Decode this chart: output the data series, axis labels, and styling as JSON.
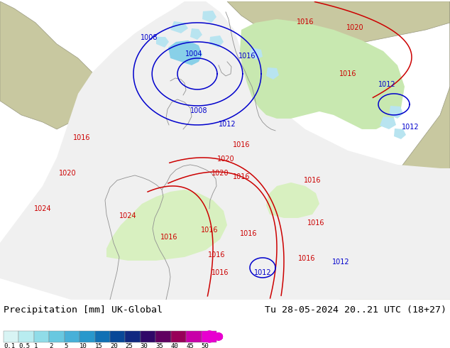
{
  "title_left": "Precipitation [mm] UK-Global",
  "title_right": "Tu 28-05-2024 20..21 UTC (18+27)",
  "colorbar_labels": [
    "0.1",
    "0.5",
    "1",
    "2",
    "5",
    "10",
    "15",
    "20",
    "25",
    "30",
    "35",
    "40",
    "45",
    "50"
  ],
  "precip_colors": [
    "#d8f4f4",
    "#b8ecf0",
    "#90dce8",
    "#68c8e0",
    "#48b0d8",
    "#2898cc",
    "#1070b4",
    "#084898",
    "#102880",
    "#300868",
    "#600060",
    "#980058",
    "#c800a8",
    "#e800d0",
    "#f060d8"
  ],
  "land_color": "#c8c8a0",
  "ocean_color": "#a8b8b8",
  "forecast_area_color": "#f0f0f0",
  "green_precip_color": "#c8e8b0",
  "light_green_color": "#d8f0c0",
  "blue_precip_color": "#88d0e8",
  "light_blue_color": "#b8e4f0",
  "footer_color": "#ffffff",
  "text_color": "#000000",
  "red_isobar_color": "#cc0000",
  "blue_isobar_color": "#0000cc"
}
